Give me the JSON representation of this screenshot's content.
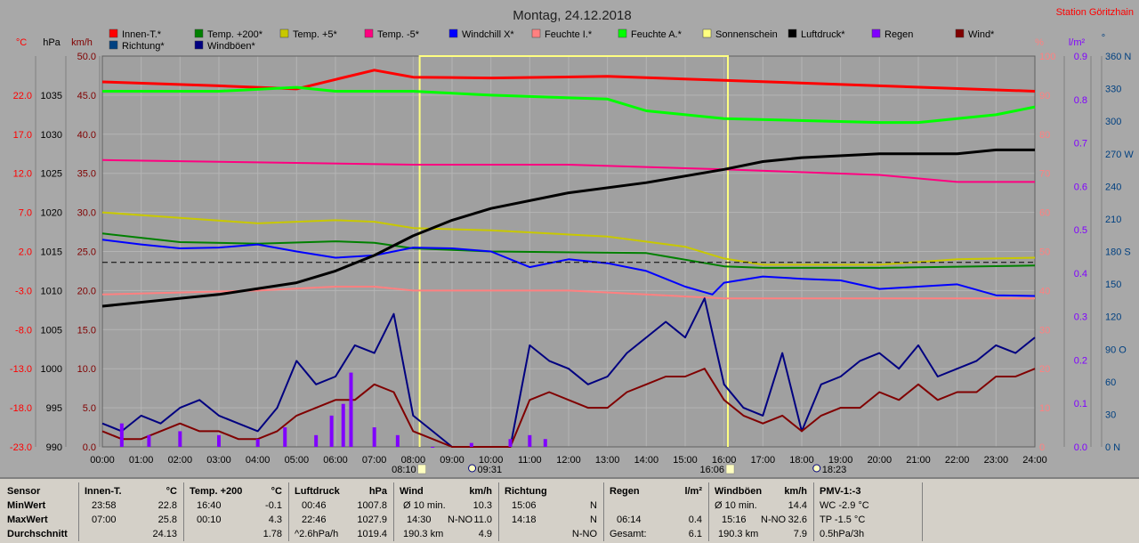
{
  "chart_data": {
    "type": "line",
    "title": "Montag, 24.12.2018",
    "station": "Station Göritzhain",
    "x_range": [
      "00:00",
      "24:00"
    ],
    "x_ticks": [
      "00:00",
      "01:00",
      "02:00",
      "03:00",
      "04:00",
      "05:00",
      "06:00",
      "07:00",
      "08:00",
      "09:00",
      "10:00",
      "11:00",
      "12:00",
      "13:00",
      "14:00",
      "15:00",
      "16:00",
      "17:00",
      "18:00",
      "19:00",
      "20:00",
      "21:00",
      "22:00",
      "23:00",
      "24:00"
    ],
    "axes": {
      "temp": {
        "unit": "°C",
        "range": [
          -23.0,
          27.0
        ],
        "ticks": [
          "-23.0",
          "-18.0",
          "-13.0",
          "-8.0",
          "-3.0",
          "2.0",
          "7.0",
          "12.0",
          "17.0",
          "22.0"
        ]
      },
      "pressure": {
        "unit": "hPa",
        "range": [
          990,
          1040
        ],
        "ticks": [
          "990",
          "995",
          "1000",
          "1005",
          "1010",
          "1015",
          "1020",
          "1025",
          "1030",
          "1035"
        ]
      },
      "wind": {
        "unit": "km/h",
        "range": [
          0.0,
          50.0
        ],
        "ticks": [
          "0.0",
          "5.0",
          "10.0",
          "15.0",
          "20.0",
          "25.0",
          "30.0",
          "35.0",
          "40.0",
          "45.0",
          "50.0"
        ]
      },
      "humidity": {
        "unit": "%",
        "range": [
          0,
          100
        ],
        "ticks": [
          "0",
          "10",
          "20",
          "30",
          "40",
          "50",
          "60",
          "70",
          "80",
          "90",
          "100"
        ]
      },
      "rain": {
        "unit": "l/m²",
        "range": [
          0.0,
          1.0
        ],
        "ticks": [
          "0.0",
          "0.1",
          "0.2",
          "0.3",
          "0.4",
          "0.5",
          "0.6",
          "0.7",
          "0.8",
          "0.9"
        ]
      },
      "direction": {
        "unit": "°",
        "range": [
          0,
          360
        ],
        "ticks": [
          "0 N",
          "30",
          "60",
          "90 O",
          "120",
          "150",
          "180 S",
          "210",
          "240",
          "270 W",
          "300",
          "330",
          "360 N"
        ]
      }
    },
    "legend": [
      {
        "name": "Innen-T.*",
        "color": "#ff0000"
      },
      {
        "name": "Temp. +200*",
        "color": "#008000"
      },
      {
        "name": "Temp. +5*",
        "color": "#c8c800"
      },
      {
        "name": "Temp. -5*",
        "color": "#ff0080"
      },
      {
        "name": "Windchill X*",
        "color": "#0000ff"
      },
      {
        "name": "Feuchte I.*",
        "color": "#ff8080"
      },
      {
        "name": "Feuchte A.*",
        "color": "#00ff00"
      },
      {
        "name": "Sonnenschein",
        "color": "#ffff80"
      },
      {
        "name": "Luftdruck*",
        "color": "#000000"
      },
      {
        "name": "Regen",
        "color": "#8000ff"
      },
      {
        "name": "Wind*",
        "color": "#800000"
      },
      {
        "name": "Richtung*",
        "color": "#004080"
      },
      {
        "name": "Windböen*",
        "color": "#000080"
      }
    ],
    "sunrise": "08:10",
    "sunset": "16:06",
    "moon_markers": [
      "09:31",
      "18:23"
    ],
    "series": [
      {
        "name": "Innen-T.*",
        "axis": "temp",
        "color": "#ff0000",
        "x": [
          0,
          3,
          5,
          6,
          7,
          8,
          10,
          13,
          16,
          20,
          24
        ],
        "y": [
          23.7,
          23.2,
          22.8,
          24.0,
          25.2,
          24.3,
          24.2,
          24.4,
          23.9,
          23.2,
          22.5
        ]
      },
      {
        "name": "Temp. +200*",
        "axis": "temp",
        "color": "#008000",
        "x": [
          0,
          2,
          4,
          6,
          7,
          8,
          10,
          14,
          16,
          17,
          20,
          24
        ],
        "y": [
          4.3,
          3.2,
          3.0,
          3.3,
          3.1,
          2.4,
          2.0,
          1.8,
          0.1,
          -0.1,
          -0.1,
          0.2
        ]
      },
      {
        "name": "Temp. +5*",
        "axis": "temp",
        "color": "#c8c800",
        "x": [
          0,
          2,
          4,
          6,
          7,
          8,
          10,
          13,
          15,
          16,
          17,
          20,
          22,
          24
        ],
        "y": [
          7.0,
          6.3,
          5.6,
          6.0,
          5.8,
          5.0,
          4.7,
          3.9,
          2.6,
          1.1,
          0.3,
          0.3,
          1.0,
          1.2
        ]
      },
      {
        "name": "Temp. -5*",
        "axis": "temp",
        "color": "#ff0080",
        "x": [
          0,
          4,
          8,
          12,
          16,
          20,
          22,
          24
        ],
        "y": [
          13.7,
          13.4,
          13.1,
          13.1,
          12.5,
          11.8,
          10.9,
          10.9
        ]
      },
      {
        "name": "Windchill X*",
        "axis": "temp",
        "color": "#0000ff",
        "x": [
          0,
          1,
          2,
          3,
          4,
          5,
          6,
          7,
          8,
          9,
          10,
          11,
          12,
          13,
          14,
          15,
          15.7,
          16,
          17,
          18,
          19,
          20,
          21,
          22,
          23,
          24
        ],
        "y": [
          3.5,
          2.9,
          2.4,
          2.5,
          2.9,
          2.0,
          1.2,
          1.5,
          2.5,
          2.4,
          2.0,
          0.0,
          1.0,
          0.5,
          -0.5,
          -2.5,
          -3.5,
          -2.0,
          -1.2,
          -1.5,
          -1.7,
          -2.8,
          -2.5,
          -2.2,
          -3.6,
          -3.7
        ]
      },
      {
        "name": "Feuchte I.*",
        "axis": "humidity",
        "color": "#ff8080",
        "x": [
          0,
          4,
          6,
          7,
          8,
          10,
          12,
          16,
          20,
          24
        ],
        "y": [
          39,
          40,
          41,
          41,
          40,
          40,
          40,
          38,
          38,
          38
        ]
      },
      {
        "name": "Feuchte A.*",
        "axis": "humidity",
        "color": "#00ff00",
        "x": [
          0,
          3,
          5,
          6,
          7,
          8,
          10,
          13,
          14,
          16,
          20,
          21,
          23,
          24
        ],
        "y": [
          91,
          91,
          92,
          91,
          91,
          91,
          90,
          89,
          86,
          84,
          83,
          83,
          85,
          87
        ]
      },
      {
        "name": "Luftdruck*",
        "axis": "pressure",
        "color": "#000000",
        "x": [
          0,
          3,
          5,
          6,
          7,
          8,
          9,
          10,
          12,
          14,
          16,
          17,
          18,
          20,
          22,
          23,
          24
        ],
        "y": [
          1008.0,
          1009.5,
          1011.0,
          1012.5,
          1014.5,
          1017.0,
          1019.0,
          1020.5,
          1022.5,
          1023.8,
          1025.5,
          1026.5,
          1027.0,
          1027.5,
          1027.5,
          1028.0,
          1028.0
        ]
      },
      {
        "name": "Windböen*",
        "axis": "wind",
        "color": "#000080",
        "x": [
          0,
          0.5,
          1,
          1.5,
          2,
          2.5,
          3,
          3.5,
          4,
          4.5,
          5,
          5.5,
          6,
          6.5,
          7,
          7.5,
          8,
          8.5,
          9,
          9.5,
          10,
          10.5,
          11,
          11.5,
          12,
          12.5,
          13,
          13.5,
          14,
          14.5,
          15,
          15.5,
          16,
          16.5,
          17,
          17.5,
          18,
          18.5,
          19,
          19.5,
          20,
          20.5,
          21,
          21.5,
          22,
          22.5,
          23,
          23.5,
          24
        ],
        "y": [
          3,
          2,
          4,
          3,
          5,
          6,
          4,
          3,
          2,
          5,
          11,
          8,
          9,
          13,
          12,
          17,
          4,
          2,
          0,
          0,
          0,
          0,
          13,
          11,
          10,
          8,
          9,
          12,
          14,
          16,
          14,
          19,
          8,
          5,
          4,
          12,
          2,
          8,
          9,
          11,
          12,
          10,
          13,
          9,
          10,
          11,
          13,
          12,
          14
        ]
      },
      {
        "name": "Wind*",
        "axis": "wind",
        "color": "#800000",
        "x": [
          0,
          0.5,
          1,
          1.5,
          2,
          2.5,
          3,
          3.5,
          4,
          4.5,
          5,
          5.5,
          6,
          6.5,
          7,
          7.5,
          8,
          8.5,
          9,
          9.5,
          10,
          10.5,
          11,
          11.5,
          12,
          12.5,
          13,
          13.5,
          14,
          14.5,
          15,
          15.5,
          16,
          16.5,
          17,
          17.5,
          18,
          18.5,
          19,
          19.5,
          20,
          20.5,
          21,
          21.5,
          22,
          22.5,
          23,
          23.5,
          24
        ],
        "y": [
          2,
          1,
          1,
          2,
          3,
          2,
          2,
          1,
          1,
          2,
          4,
          5,
          6,
          6,
          8,
          7,
          2,
          1,
          0,
          0,
          0,
          0,
          6,
          7,
          6,
          5,
          5,
          7,
          8,
          9,
          9,
          10,
          6,
          4,
          3,
          4,
          2,
          4,
          5,
          5,
          7,
          6,
          8,
          6,
          7,
          7,
          9,
          9,
          10
        ]
      },
      {
        "name": "Regen",
        "axis": "rain",
        "color": "#8000ff",
        "x": [
          0.5,
          1.2,
          2,
          3,
          4,
          4.7,
          5.5,
          5.9,
          6.2,
          6.4,
          7,
          7.6,
          8.5,
          9.5,
          10.5,
          11,
          11.4
        ],
        "y": [
          0.06,
          0.03,
          0.04,
          0.03,
          0.02,
          0.05,
          0.03,
          0.08,
          0.11,
          0.19,
          0.05,
          0.03,
          0.0,
          0.01,
          0.02,
          0.03,
          0.02
        ]
      }
    ]
  },
  "table": {
    "sensor_col": {
      "head": "Sensor",
      "rows": [
        "MinWert",
        "MaxWert",
        "Durchschnitt"
      ]
    },
    "innen": {
      "head": "Innen-T.",
      "unit": "°C",
      "r1": [
        "23:58",
        "22.8"
      ],
      "r2": [
        "07:00",
        "25.8"
      ],
      "r3": [
        "",
        "24.13"
      ]
    },
    "temp200": {
      "head": "Temp. +200",
      "unit": "°C",
      "r1": [
        "16:40",
        "-0.1"
      ],
      "r2": [
        "00:10",
        "4.3"
      ],
      "r3": [
        "",
        "1.78"
      ]
    },
    "luftdruck": {
      "head": "Luftdruck",
      "unit": "hPa",
      "r1": [
        "00:46",
        "1007.8"
      ],
      "r2": [
        "22:46",
        "1027.9"
      ],
      "r3": [
        "^2.6hPa/h",
        "1019.4"
      ]
    },
    "wind": {
      "head": "Wind",
      "unit": "km/h",
      "r1": [
        "Ø 10 min.",
        "",
        "10.3"
      ],
      "r2": [
        "14:30",
        "N-NO",
        "11.0"
      ],
      "r3": [
        "190.3 km",
        "",
        "4.9"
      ]
    },
    "richtung": {
      "head": "Richtung",
      "r1": [
        "15:06",
        "N"
      ],
      "r2": [
        "14:18",
        "N"
      ],
      "r3": [
        "",
        "N-NO"
      ]
    },
    "regen": {
      "head": "Regen",
      "unit": "l/m²",
      "r1": [
        "",
        ""
      ],
      "r2": [
        "06:14",
        "0.4"
      ],
      "r3": [
        "Gesamt:",
        "6.1"
      ]
    },
    "windboen": {
      "head": "Windböen",
      "unit": "km/h",
      "r1": [
        "Ø 10 min.",
        "",
        "14.4"
      ],
      "r2": [
        "15:16",
        "N-NO",
        "32.6"
      ],
      "r3": [
        "190.3 km",
        "",
        "7.9"
      ]
    },
    "pmv": {
      "head": "PMV-1:-3",
      "r1": "WC -2.9 °C",
      "r2": "TP -1.5 °C",
      "r3": "0.5hPa/3h"
    }
  }
}
